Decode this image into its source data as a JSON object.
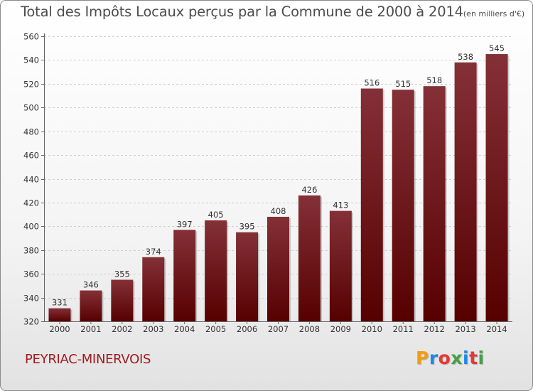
{
  "header": {
    "title": "Total des Impôts Locaux perçus par la Commune de 2000 à 2014",
    "unit": "(en milliers d'€)"
  },
  "commune": "PEYRIAC-MINERVOIS",
  "logo": {
    "text": "Proxiti",
    "colors": [
      "#f39c12",
      "#1e88e5",
      "#e53935",
      "#43a047",
      "#1e88e5",
      "#e53935",
      "#43a047"
    ]
  },
  "chart_data": {
    "type": "bar",
    "categories": [
      "2000",
      "2001",
      "2002",
      "2003",
      "2004",
      "2005",
      "2006",
      "2007",
      "2008",
      "2009",
      "2010",
      "2011",
      "2012",
      "2013",
      "2014"
    ],
    "values": [
      331,
      346,
      355,
      374,
      397,
      405,
      395,
      408,
      426,
      413,
      516,
      515,
      518,
      538,
      545
    ],
    "ylim": [
      320,
      560
    ],
    "yticks": [
      320,
      340,
      360,
      380,
      400,
      420,
      440,
      460,
      480,
      500,
      520,
      540,
      560
    ],
    "grid": true,
    "bar_color": "#7a1f25",
    "bar_color_dark": "#560000"
  }
}
